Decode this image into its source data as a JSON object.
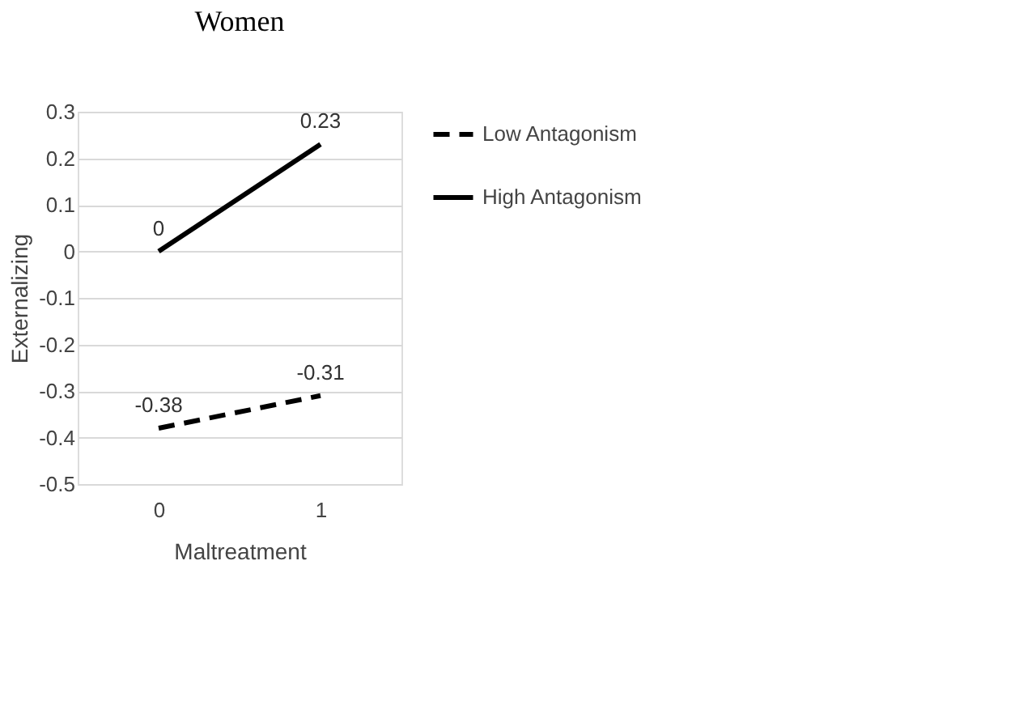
{
  "chart_data": {
    "type": "line",
    "title": "Women",
    "xlabel": "Maltreatment",
    "ylabel": "Externalizing",
    "categories": [
      "0",
      "1"
    ],
    "series": [
      {
        "name": "Low Antagonism",
        "color": "#000000",
        "line_style": "dashed",
        "values": [
          -0.38,
          -0.31
        ]
      },
      {
        "name": "High Antagonism",
        "color": "#000000",
        "line_style": "solid",
        "values": [
          0,
          0.23
        ]
      }
    ],
    "ylim": [
      -0.5,
      0.3
    ],
    "yticks": [
      -0.5,
      -0.4,
      -0.3,
      -0.2,
      -0.1,
      0,
      0.1,
      0.2,
      0.3
    ],
    "grid": "y",
    "legend": "right",
    "data_labels": true,
    "marker": "none"
  }
}
